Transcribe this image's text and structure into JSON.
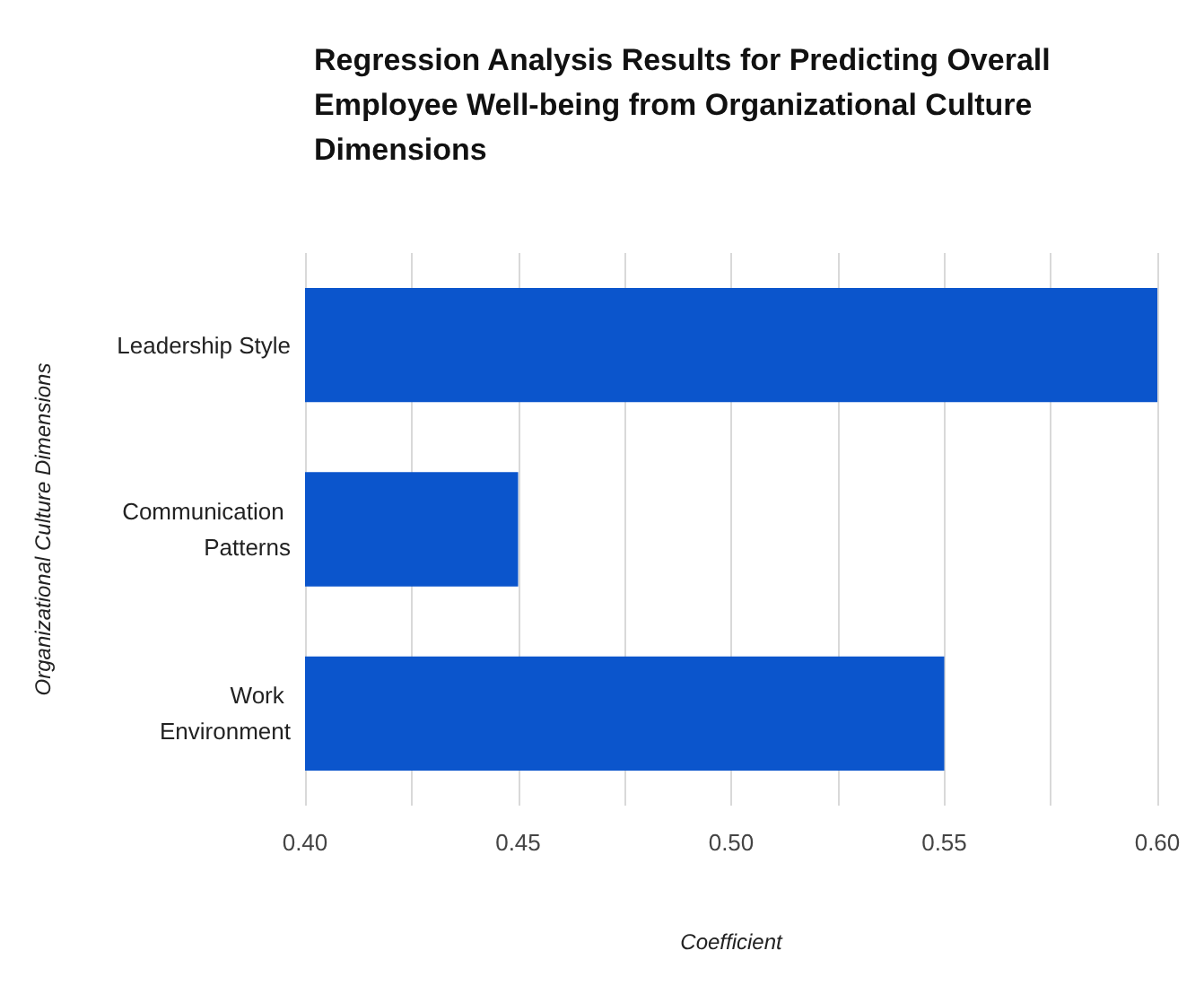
{
  "chart_data": {
    "type": "bar",
    "orientation": "horizontal",
    "title": "Regression Analysis Results for Predicting Overall Employee Well-being from Organizational Culture Dimensions",
    "xlabel": "Coefficient",
    "ylabel": "Organizational Culture Dimensions",
    "categories": [
      "Leadership Style",
      "Communication Patterns",
      "Work Environment"
    ],
    "values": [
      0.6,
      0.45,
      0.55
    ],
    "color": "#0b55cc",
    "xlim": [
      0.4,
      0.6
    ],
    "xticks": [
      {
        "value": 0.4,
        "label": "0.40"
      },
      {
        "value": 0.425,
        "label": null
      },
      {
        "value": 0.45,
        "label": "0.45"
      },
      {
        "value": 0.475,
        "label": null
      },
      {
        "value": 0.5,
        "label": "0.50"
      },
      {
        "value": 0.525,
        "label": null
      },
      {
        "value": 0.55,
        "label": "0.55"
      },
      {
        "value": 0.575,
        "label": null
      },
      {
        "value": 0.6,
        "label": "0.60"
      }
    ],
    "grid": "x"
  }
}
